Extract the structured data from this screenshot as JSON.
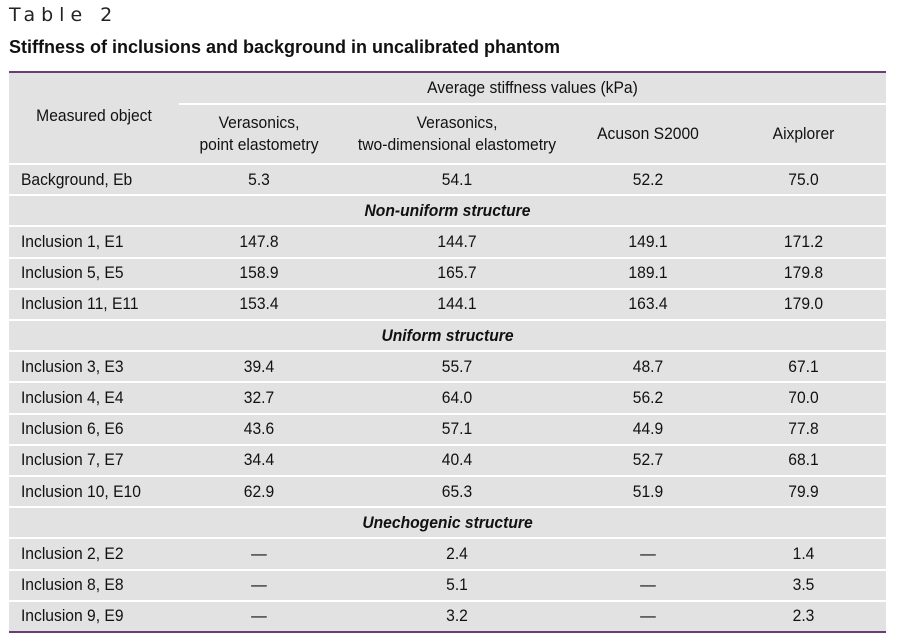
{
  "table_number": "Table 2",
  "caption": "Stiffness of inclusions and background in uncalibrated phantom",
  "header": {
    "measured_object": "Measured object",
    "group": "Average stiffness values (kPa)",
    "columns": [
      [
        "Verasonics,",
        "point elastometry"
      ],
      [
        "Verasonics,",
        "two-dimensional elastometry"
      ],
      [
        "Acuson S2000"
      ],
      [
        "Aixplorer"
      ]
    ]
  },
  "rows": [
    {
      "type": "data",
      "cells": [
        "Background, Eb",
        "5.3",
        "54.1",
        "52.2",
        "75.0"
      ]
    },
    {
      "type": "section",
      "label": "Non-uniform structure"
    },
    {
      "type": "data",
      "cells": [
        "Inclusion 1, E1",
        "147.8",
        "144.7",
        "149.1",
        "171.2"
      ]
    },
    {
      "type": "data",
      "cells": [
        "Inclusion 5, E5",
        "158.9",
        "165.7",
        "189.1",
        "179.8"
      ]
    },
    {
      "type": "data",
      "cells": [
        "Inclusion 11, E11",
        "153.4",
        "144.1",
        "163.4",
        "179.0"
      ]
    },
    {
      "type": "section",
      "label": "Uniform structure"
    },
    {
      "type": "data",
      "cells": [
        "Inclusion 3, E3",
        "39.4",
        "55.7",
        "48.7",
        "67.1"
      ]
    },
    {
      "type": "data",
      "cells": [
        "Inclusion 4, E4",
        "32.7",
        "64.0",
        "56.2",
        "70.0"
      ]
    },
    {
      "type": "data",
      "cells": [
        "Inclusion 6, E6",
        "43.6",
        "57.1",
        "44.9",
        "77.8"
      ]
    },
    {
      "type": "data",
      "cells": [
        "Inclusion 7, E7",
        "34.4",
        "40.4",
        "52.7",
        "68.1"
      ]
    },
    {
      "type": "data",
      "cells": [
        "Inclusion 10, E10",
        "62.9",
        "65.3",
        "51.9",
        "79.9"
      ]
    },
    {
      "type": "section",
      "label": "Unechogenic structure"
    },
    {
      "type": "data",
      "cells": [
        "Inclusion 2, E2",
        "—",
        "2.4",
        "—",
        "1.4"
      ]
    },
    {
      "type": "data",
      "cells": [
        "Inclusion 8, E8",
        "—",
        "5.1",
        "—",
        "3.5"
      ]
    },
    {
      "type": "data",
      "cells": [
        "Inclusion 9, E9",
        "—",
        "3.2",
        "—",
        "2.3"
      ]
    }
  ]
}
